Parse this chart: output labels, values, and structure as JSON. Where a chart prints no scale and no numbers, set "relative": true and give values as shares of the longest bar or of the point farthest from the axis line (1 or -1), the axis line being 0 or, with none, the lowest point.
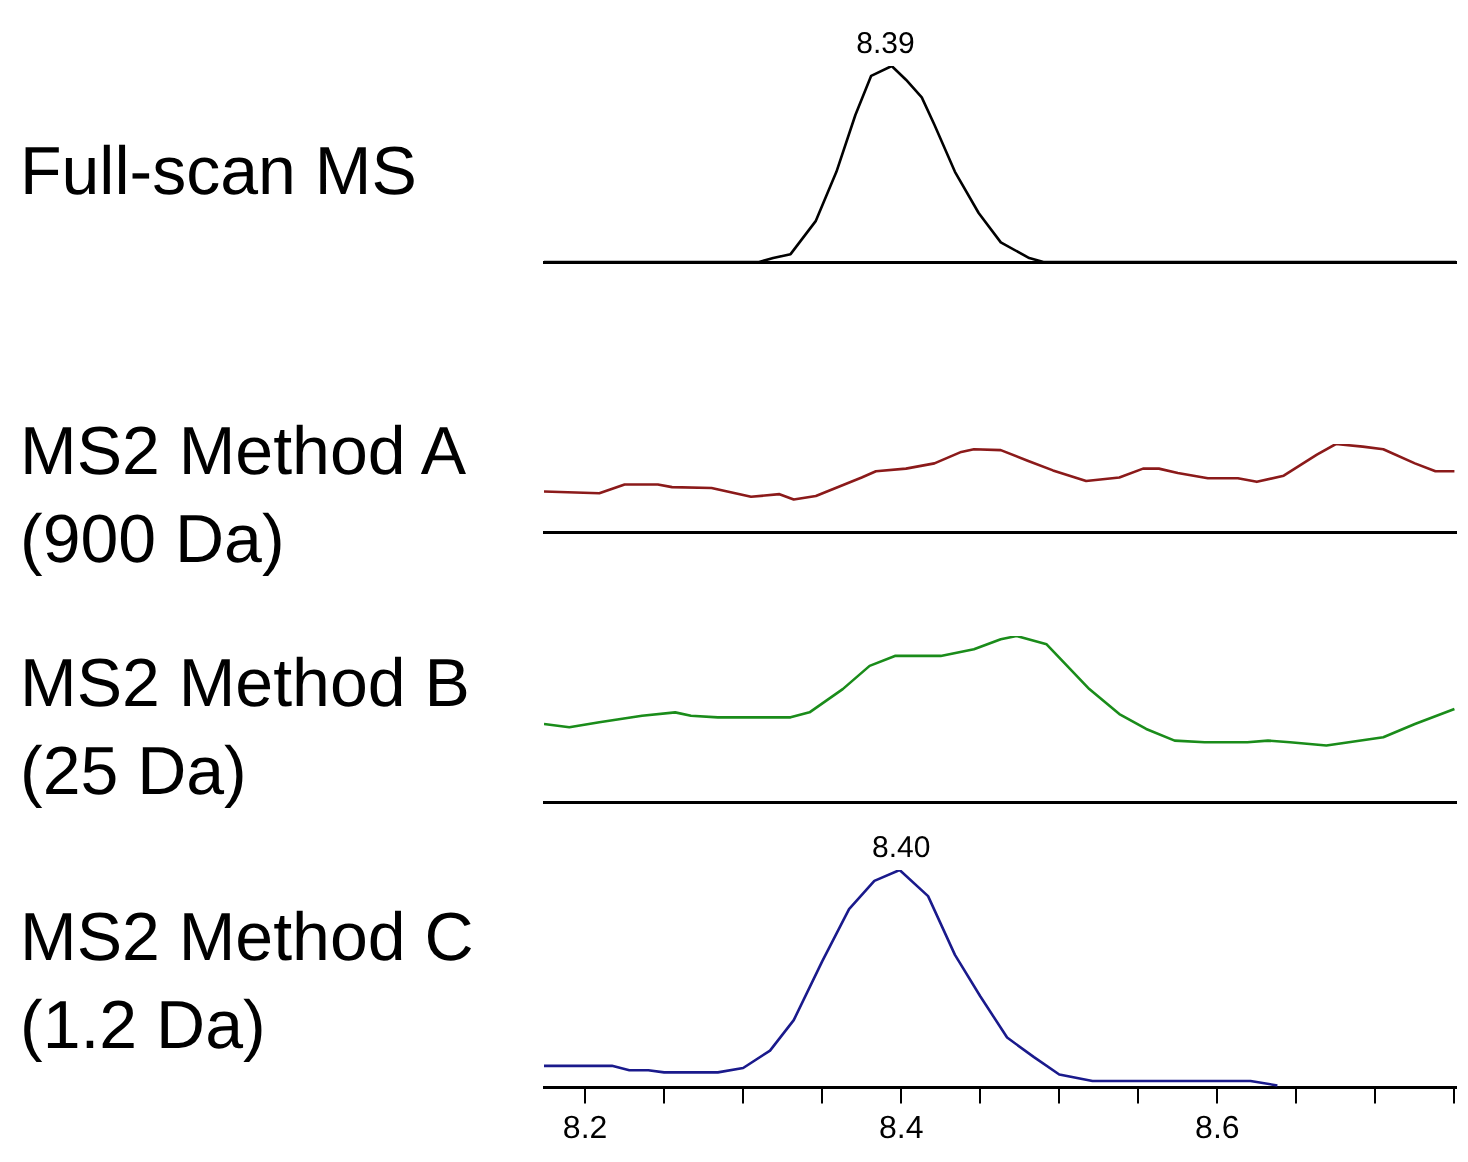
{
  "chart_data": [
    {
      "type": "line",
      "title": "Full-scan MS",
      "relative": true,
      "xlim": [
        8.174,
        8.751
      ],
      "tick_labels": false,
      "annotations": [
        {
          "text": "8.39",
          "x": 8.39,
          "y": 1
        }
      ],
      "series": [
        {
          "color": "#000000",
          "x": [
            8.174,
            8.31,
            8.319,
            8.33,
            8.346,
            8.359,
            8.371,
            8.381,
            8.394,
            8.403,
            8.413,
            8.421,
            8.434,
            8.449,
            8.463,
            8.481,
            8.49,
            8.751
          ],
          "values": [
            0,
            0,
            0.02,
            0.04,
            0.21,
            0.46,
            0.75,
            0.95,
            1,
            0.93,
            0.84,
            0.7,
            0.46,
            0.25,
            0.1,
            0.02,
            0,
            0
          ]
        }
      ]
    },
    {
      "type": "line",
      "title": "MS2 Method A (900 Da)",
      "relative": true,
      "xlim": [
        8.174,
        8.751
      ],
      "tick_labels": false,
      "series": [
        {
          "color": "#8b1a1a",
          "x": [
            8.174,
            8.209,
            8.225,
            8.246,
            8.255,
            8.28,
            8.305,
            8.323,
            8.332,
            8.346,
            8.375,
            8.384,
            8.403,
            8.421,
            8.438,
            8.446,
            8.463,
            8.48,
            8.496,
            8.517,
            8.538,
            8.553,
            8.563,
            8.575,
            8.594,
            8.613,
            8.625,
            8.642,
            8.663,
            8.675,
            8.692,
            8.705,
            8.725,
            8.738,
            8.75
          ],
          "values": [
            0.46,
            0.44,
            0.54,
            0.54,
            0.51,
            0.5,
            0.4,
            0.43,
            0.37,
            0.41,
            0.62,
            0.69,
            0.72,
            0.78,
            0.91,
            0.94,
            0.93,
            0.81,
            0.7,
            0.58,
            0.62,
            0.72,
            0.72,
            0.67,
            0.61,
            0.61,
            0.57,
            0.64,
            0.88,
            1,
            0.97,
            0.94,
            0.78,
            0.69,
            0.69
          ]
        }
      ]
    },
    {
      "type": "line",
      "title": "MS2 Method B (25 Da)",
      "relative": true,
      "xlim": [
        8.174,
        8.751
      ],
      "tick_labels": false,
      "series": [
        {
          "color": "#1a8c1a",
          "x": [
            8.174,
            8.19,
            8.209,
            8.236,
            8.257,
            8.267,
            8.284,
            8.33,
            8.342,
            8.363,
            8.38,
            8.396,
            8.425,
            8.446,
            8.463,
            8.473,
            8.492,
            8.519,
            8.538,
            8.555,
            8.573,
            8.592,
            8.619,
            8.632,
            8.646,
            8.669,
            8.705,
            8.725,
            8.75
          ],
          "values": [
            0.47,
            0.45,
            0.48,
            0.52,
            0.54,
            0.52,
            0.51,
            0.51,
            0.54,
            0.68,
            0.82,
            0.88,
            0.88,
            0.92,
            0.98,
            1,
            0.95,
            0.68,
            0.53,
            0.44,
            0.37,
            0.36,
            0.36,
            0.37,
            0.36,
            0.34,
            0.39,
            0.47,
            0.56
          ]
        }
      ]
    },
    {
      "type": "line",
      "title": "MS2 Method C (1.2 Da)",
      "relative": true,
      "xlim": [
        8.174,
        8.751
      ],
      "tick_labels": "x",
      "annotations": [
        {
          "text": "8.40",
          "x": 8.4,
          "y": 1
        }
      ],
      "xticks": [
        8.2,
        {
          "value": 8.25,
          "label": null
        },
        {
          "value": 8.3,
          "label": null
        },
        {
          "value": 8.35,
          "label": null
        },
        8.4,
        {
          "value": 8.45,
          "label": null
        },
        {
          "value": 8.5,
          "label": null
        },
        {
          "value": 8.55,
          "label": null
        },
        8.6,
        {
          "value": 8.65,
          "label": null
        },
        {
          "value": 8.7,
          "label": null
        },
        {
          "value": 8.75,
          "label": null
        }
      ],
      "series": [
        {
          "color": "#1a1a8c",
          "x": [
            8.174,
            8.217,
            8.228,
            8.24,
            8.25,
            8.284,
            8.3,
            8.317,
            8.332,
            8.35,
            8.367,
            8.383,
            8.399,
            8.417,
            8.434,
            8.45,
            8.467,
            8.484,
            8.5,
            8.521,
            8.621,
            8.638
          ],
          "values": [
            0.1,
            0.1,
            0.08,
            0.08,
            0.07,
            0.07,
            0.09,
            0.17,
            0.31,
            0.58,
            0.82,
            0.95,
            1,
            0.88,
            0.61,
            0.42,
            0.23,
            0.14,
            0.06,
            0.03,
            0.03,
            0.01
          ]
        }
      ]
    }
  ]
}
